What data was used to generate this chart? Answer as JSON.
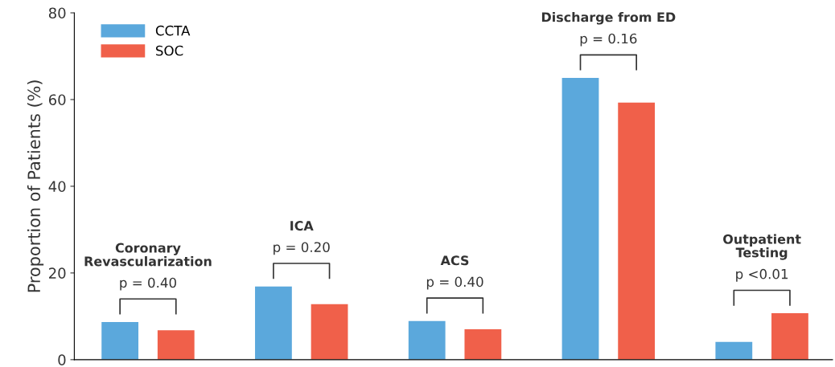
{
  "chart_data": {
    "type": "bar",
    "ylabel": "Proportion of Patients (%)",
    "categories": [
      null,
      null,
      null,
      null,
      null
    ],
    "series": [
      {
        "name": "CCTA",
        "color": "#5ba8dc",
        "values": [
          8.7,
          16.9,
          8.9,
          65.0,
          4.1
        ]
      },
      {
        "name": "SOC",
        "color": "#f0604a",
        "values": [
          6.8,
          12.8,
          7.0,
          59.3,
          10.7
        ]
      }
    ],
    "ylim": [
      0,
      80
    ],
    "yticks": [
      0,
      20,
      40,
      60,
      80
    ],
    "grid": false,
    "legend": "top left",
    "annotations": [
      "Coronary\nRevascularization",
      "p = 0.40",
      "ICA",
      "p = 0.20",
      "ACS",
      "p = 0.40",
      "Discharge from ED",
      "p = 0.16",
      "Outpatient\nTesting",
      "p <0.01"
    ]
  }
}
